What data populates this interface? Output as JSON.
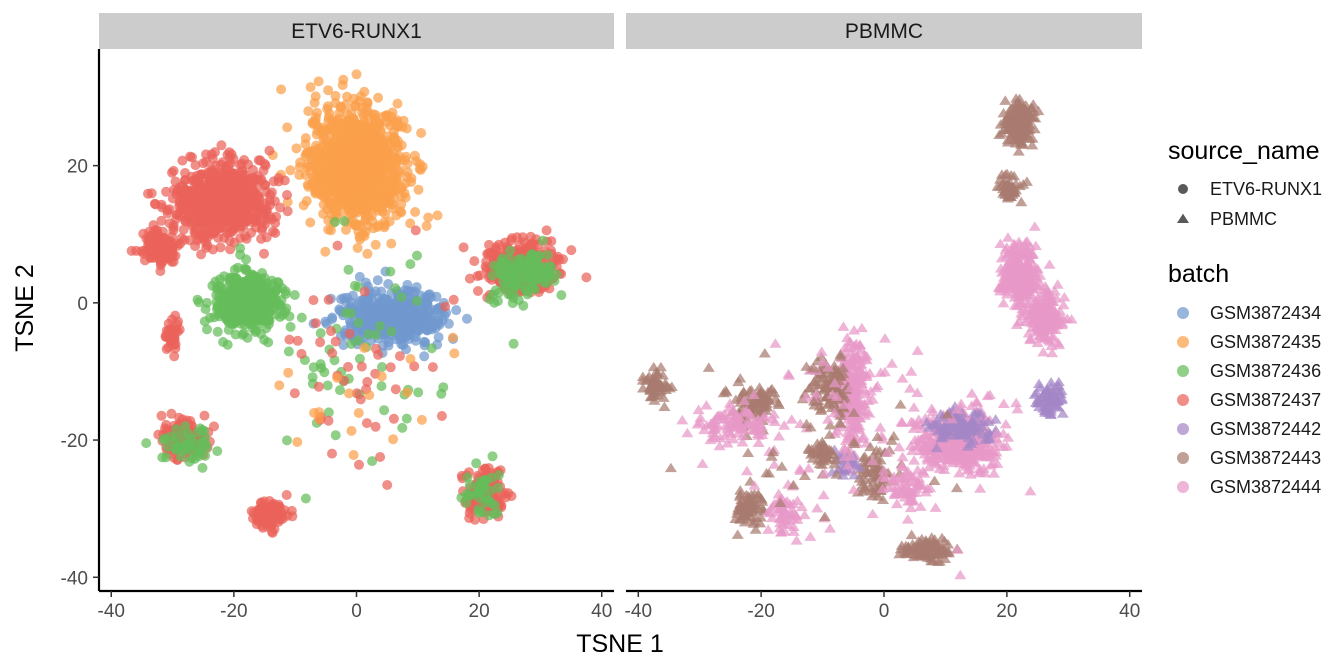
{
  "chart_data": {
    "type": "scatter",
    "xlabel": "TSNE 1",
    "ylabel": "TSNE 2",
    "xlim": [
      -42,
      42
    ],
    "ylim": [
      -42,
      37
    ],
    "x_ticks": [
      -40,
      -20,
      0,
      20,
      40
    ],
    "x_tick_labels": [
      "-40",
      "-20",
      "0",
      "20",
      "40"
    ],
    "y_ticks": [
      -40,
      -20,
      0,
      20
    ],
    "y_tick_labels": [
      "-40",
      "-20",
      "0",
      "20"
    ],
    "grid": false,
    "legend_position": "right",
    "facets": [
      "ETV6-RUNX1",
      "PBMMC"
    ],
    "shape_legend": {
      "title": "source_name",
      "entries": [
        {
          "label": "ETV6-RUNX1",
          "shape": "circle"
        },
        {
          "label": "PBMMC",
          "shape": "triangle"
        }
      ]
    },
    "color_legend": {
      "title": "batch",
      "entries": [
        {
          "label": "GSM3872434",
          "color": "#7099cf"
        },
        {
          "label": "GSM3872435",
          "color": "#fba04b"
        },
        {
          "label": "GSM3872436",
          "color": "#65bd5a"
        },
        {
          "label": "GSM3872437",
          "color": "#ea625a"
        },
        {
          "label": "GSM3872442",
          "color": "#a487c6"
        },
        {
          "label": "GSM3872443",
          "color": "#a97c70"
        },
        {
          "label": "GSM3872444",
          "color": "#e899c8"
        }
      ]
    },
    "clusters": [
      {
        "facet": 0,
        "batch": "GSM3872435",
        "cx": 0,
        "cy": 20,
        "sx": 6.5,
        "sy": 7,
        "n": 1100
      },
      {
        "facet": 0,
        "batch": "GSM3872437",
        "cx": -22,
        "cy": 15,
        "sx": 6.5,
        "sy": 4.5,
        "n": 700
      },
      {
        "facet": 0,
        "batch": "GSM3872437",
        "cx": -32,
        "cy": 8,
        "sx": 2.5,
        "sy": 2.5,
        "n": 130
      },
      {
        "facet": 0,
        "batch": "GSM3872436",
        "cx": -18,
        "cy": 0,
        "sx": 4.5,
        "sy": 3.5,
        "n": 450
      },
      {
        "facet": 0,
        "batch": "GSM3872434",
        "cx": 6,
        "cy": -2,
        "sx": 6.5,
        "sy": 3.2,
        "n": 550
      },
      {
        "facet": 0,
        "batch": "GSM3872437",
        "cx": 27,
        "cy": 5,
        "sx": 4.5,
        "sy": 3,
        "n": 450
      },
      {
        "facet": 0,
        "batch": "GSM3872436",
        "cx": 27,
        "cy": 4,
        "sx": 4.5,
        "sy": 3,
        "n": 120
      },
      {
        "facet": 0,
        "batch": "GSM3872437",
        "cx": -28,
        "cy": -20,
        "sx": 2.8,
        "sy": 2,
        "n": 180
      },
      {
        "facet": 0,
        "batch": "GSM3872436",
        "cx": -28,
        "cy": -21,
        "sx": 3.2,
        "sy": 2.2,
        "n": 50
      },
      {
        "facet": 0,
        "batch": "GSM3872437",
        "cx": -14,
        "cy": -31,
        "sx": 2.2,
        "sy": 1.6,
        "n": 110
      },
      {
        "facet": 0,
        "batch": "GSM3872437",
        "cx": 21,
        "cy": -28,
        "sx": 2.5,
        "sy": 2.5,
        "n": 180
      },
      {
        "facet": 0,
        "batch": "GSM3872436",
        "cx": 21,
        "cy": -28,
        "sx": 2.8,
        "sy": 2.8,
        "n": 40
      },
      {
        "facet": 0,
        "batch": "GSM3872437",
        "cx": -30,
        "cy": -5,
        "sx": 1.2,
        "sy": 2,
        "n": 35
      },
      {
        "facet": 0,
        "batch": "GSM3872436",
        "cx": 0,
        "cy": -8,
        "sx": 14,
        "sy": 14,
        "n": 60
      },
      {
        "facet": 0,
        "batch": "GSM3872437",
        "cx": 0,
        "cy": -10,
        "sx": 14,
        "sy": 14,
        "n": 45
      },
      {
        "facet": 0,
        "batch": "GSM3872435",
        "cx": 0,
        "cy": -15,
        "sx": 14,
        "sy": 10,
        "n": 20
      },
      {
        "facet": 1,
        "batch": "GSM3872443",
        "cx": 22,
        "cy": 26,
        "sx": 2,
        "sy": 2.5,
        "n": 180
      },
      {
        "facet": 1,
        "batch": "GSM3872443",
        "cx": 20.5,
        "cy": 17,
        "sx": 1.5,
        "sy": 1.5,
        "n": 50
      },
      {
        "facet": 1,
        "batch": "GSM3872444",
        "cx": 22,
        "cy": 4,
        "sx": 2.5,
        "sy": 3.5,
        "n": 250
      },
      {
        "facet": 1,
        "batch": "GSM3872444",
        "cx": 26,
        "cy": -2,
        "sx": 2.5,
        "sy": 3,
        "n": 200
      },
      {
        "facet": 1,
        "batch": "GSM3872442",
        "cx": 27,
        "cy": -14,
        "sx": 2,
        "sy": 2,
        "n": 70
      },
      {
        "facet": 1,
        "batch": "GSM3872444",
        "cx": 12,
        "cy": -20,
        "sx": 5.5,
        "sy": 3.5,
        "n": 380
      },
      {
        "facet": 1,
        "batch": "GSM3872442",
        "cx": 12,
        "cy": -18,
        "sx": 5,
        "sy": 2,
        "n": 90
      },
      {
        "facet": 1,
        "batch": "GSM3872444",
        "cx": -5,
        "cy": -13,
        "sx": 2,
        "sy": 6,
        "n": 220
      },
      {
        "facet": 1,
        "batch": "GSM3872443",
        "cx": -9,
        "cy": -12,
        "sx": 2.5,
        "sy": 3.5,
        "n": 110
      },
      {
        "facet": 1,
        "batch": "GSM3872443",
        "cx": -37,
        "cy": -12,
        "sx": 2,
        "sy": 2,
        "n": 60
      },
      {
        "facet": 1,
        "batch": "GSM3872443",
        "cx": -21,
        "cy": -15,
        "sx": 3,
        "sy": 2.5,
        "n": 90
      },
      {
        "facet": 1,
        "batch": "GSM3872444",
        "cx": -25,
        "cy": -18,
        "sx": 6,
        "sy": 2.5,
        "n": 90
      },
      {
        "facet": 1,
        "batch": "GSM3872443",
        "cx": -22,
        "cy": -30,
        "sx": 2,
        "sy": 2,
        "n": 70
      },
      {
        "facet": 1,
        "batch": "GSM3872444",
        "cx": -16,
        "cy": -31,
        "sx": 3,
        "sy": 2.5,
        "n": 50
      },
      {
        "facet": 1,
        "batch": "GSM3872443",
        "cx": 7,
        "cy": -36,
        "sx": 3,
        "sy": 1.3,
        "n": 100
      },
      {
        "facet": 1,
        "batch": "GSM3872443",
        "cx": -1,
        "cy": -25,
        "sx": 2.5,
        "sy": 3,
        "n": 70
      },
      {
        "facet": 1,
        "batch": "GSM3872444",
        "cx": 4,
        "cy": -27,
        "sx": 3,
        "sy": 2.5,
        "n": 60
      },
      {
        "facet": 1,
        "batch": "GSM3872442",
        "cx": -6,
        "cy": -24,
        "sx": 1.5,
        "sy": 1.5,
        "n": 25
      },
      {
        "facet": 1,
        "batch": "GSM3872443",
        "cx": -10,
        "cy": -22,
        "sx": 1.5,
        "sy": 2,
        "n": 40
      },
      {
        "facet": 1,
        "batch": "GSM3872444",
        "cx": -2,
        "cy": -18,
        "sx": 18,
        "sy": 12,
        "n": 110
      },
      {
        "facet": 1,
        "batch": "GSM3872443",
        "cx": -10,
        "cy": -22,
        "sx": 18,
        "sy": 10,
        "n": 40
      }
    ]
  }
}
